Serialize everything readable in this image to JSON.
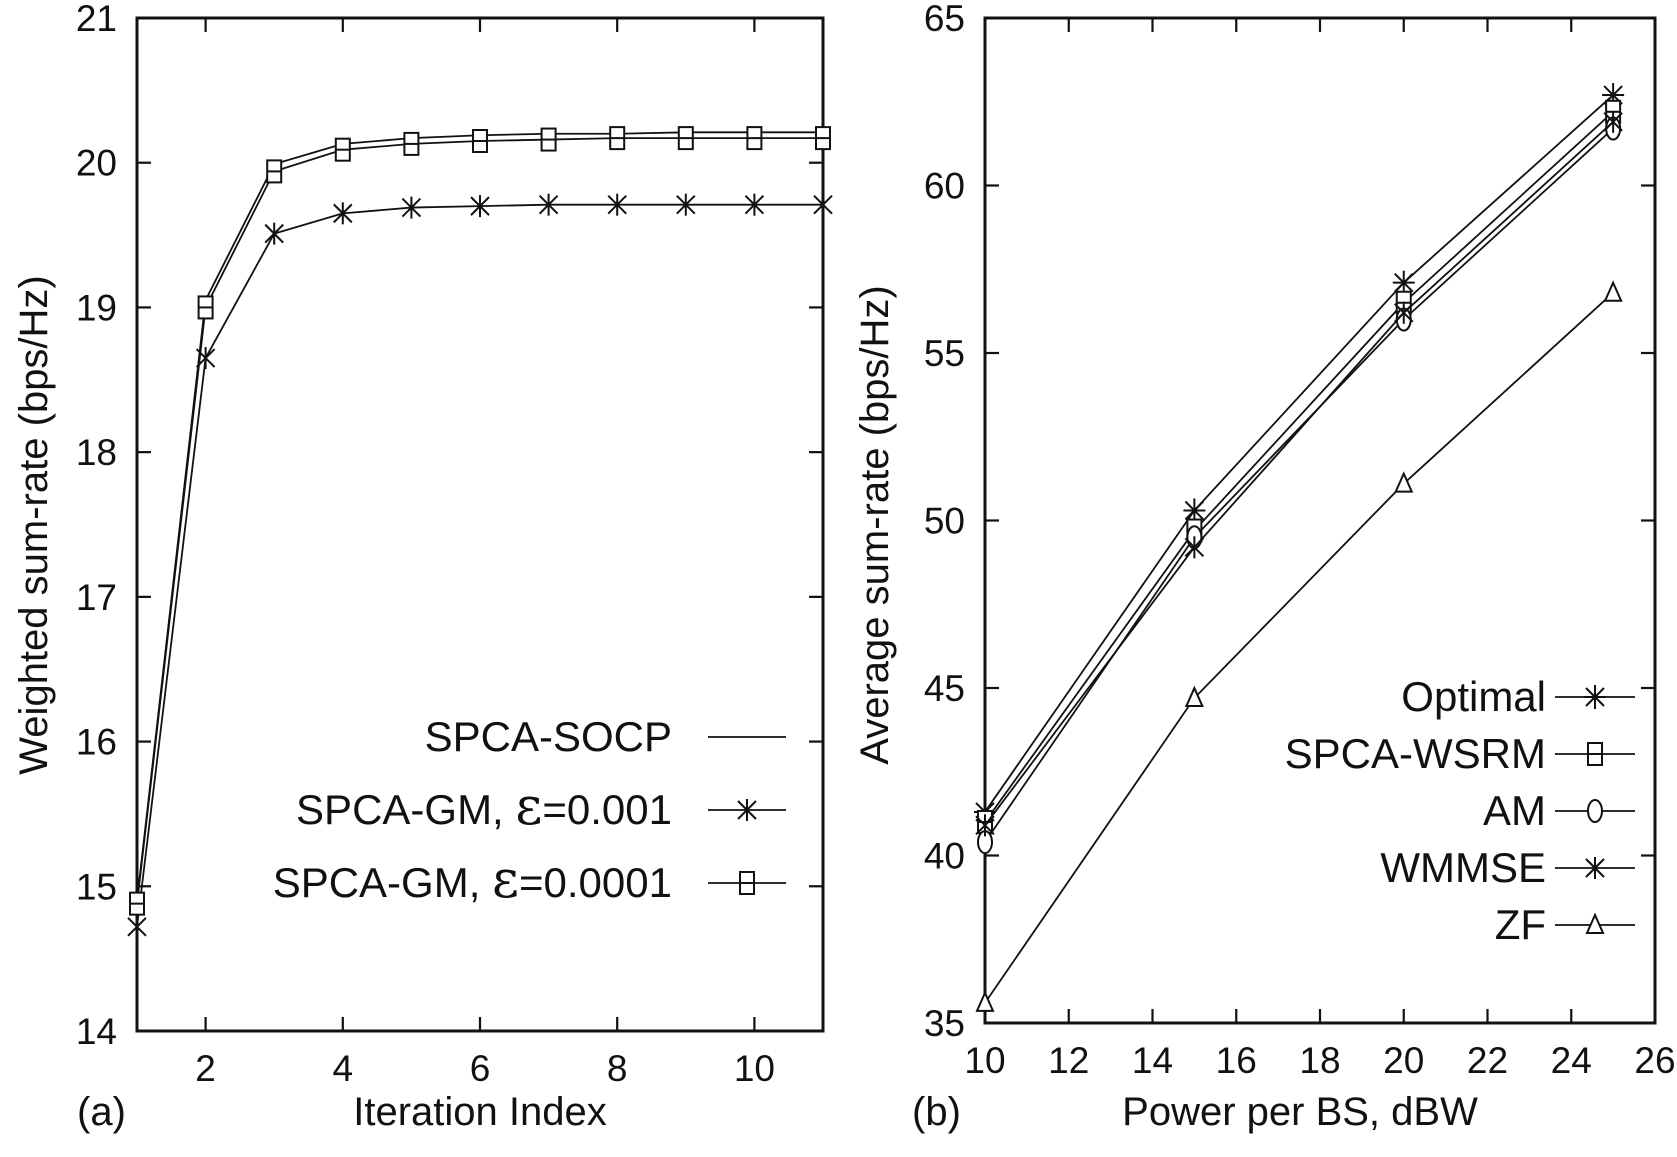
{
  "chart_data": [
    {
      "type": "line",
      "panel_label": "(a)",
      "title": "",
      "xlabel": "Iteration Index",
      "ylabel": "Weighted sum-rate (bps/Hz)",
      "xlim": [
        1,
        11
      ],
      "ylim": [
        14,
        21
      ],
      "xticks": [
        2,
        4,
        6,
        8,
        10
      ],
      "yticks": [
        14,
        15,
        16,
        17,
        18,
        19,
        20,
        21
      ],
      "legend_position": "bottom-right",
      "x": [
        1,
        2,
        3,
        4,
        5,
        6,
        7,
        8,
        9,
        10,
        11
      ],
      "series": [
        {
          "name": "SPCA-SOCP",
          "legend_prefix": "SPCA-SOCP",
          "legend_value": "",
          "marker": "none",
          "values": [
            14.9,
            19.05,
            19.99,
            20.13,
            20.17,
            20.19,
            20.2,
            20.2,
            20.21,
            20.21,
            20.21
          ]
        },
        {
          "name": "SPCA-GM, ε=0.001",
          "legend_prefix": "SPCA-GM, ",
          "legend_symbol": "ε",
          "legend_value": "=0.001",
          "marker": "x",
          "values": [
            14.72,
            18.65,
            19.51,
            19.65,
            19.69,
            19.7,
            19.71,
            19.71,
            19.71,
            19.71,
            19.71
          ]
        },
        {
          "name": "SPCA-GM, ε=0.0001",
          "legend_prefix": "SPCA-GM, ",
          "legend_symbol": "ε",
          "legend_value": "=0.0001",
          "marker": "square",
          "values": [
            14.88,
            19.0,
            19.94,
            20.09,
            20.13,
            20.15,
            20.16,
            20.17,
            20.17,
            20.17,
            20.17
          ]
        }
      ]
    },
    {
      "type": "line",
      "panel_label": "(b)",
      "title": "",
      "xlabel": "Power per BS, dBW",
      "ylabel": "Average sum-rate (bps/Hz)",
      "xlim": [
        10,
        26
      ],
      "ylim": [
        35,
        65
      ],
      "xticks": [
        10,
        12,
        14,
        16,
        18,
        20,
        22,
        24,
        26
      ],
      "yticks": [
        35,
        40,
        45,
        50,
        55,
        60,
        65
      ],
      "legend_position": "bottom-right",
      "x": [
        10,
        15,
        20,
        25
      ],
      "series": [
        {
          "name": "Optimal",
          "marker": "asterisk",
          "values": [
            41.3,
            50.3,
            57.1,
            62.7
          ]
        },
        {
          "name": "SPCA-WSRM",
          "marker": "square",
          "values": [
            41.0,
            49.7,
            56.5,
            62.2
          ]
        },
        {
          "name": "AM",
          "marker": "circle",
          "values": [
            40.4,
            49.5,
            56.0,
            61.7
          ]
        },
        {
          "name": "WMMSE",
          "marker": "x",
          "values": [
            40.9,
            49.2,
            56.2,
            61.9
          ]
        },
        {
          "name": "ZF",
          "marker": "triangle",
          "values": [
            35.6,
            44.7,
            51.1,
            56.8
          ]
        }
      ]
    }
  ]
}
